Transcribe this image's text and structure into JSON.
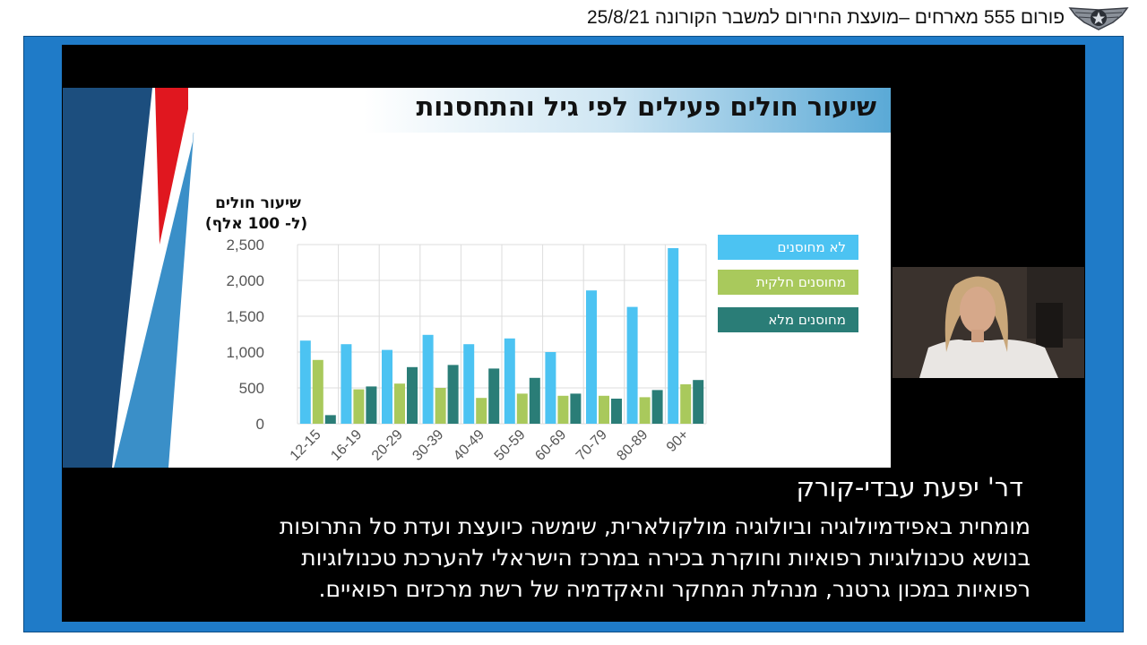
{
  "header": {
    "title": "פורום 555 מארחים –מועצת החירום למשבר הקורונה 25/8/21"
  },
  "slide": {
    "title": "שיעור חולים פעילים לפי גיל והתחסנות"
  },
  "chart_data": {
    "type": "bar",
    "ylabel_line1": "שיעור חולים",
    "ylabel_line2": "(ל- 100 אלף)",
    "categories": [
      "12-15",
      "16-19",
      "20-29",
      "30-39",
      "40-49",
      "50-59",
      "60-69",
      "70-79",
      "80-89",
      "90+"
    ],
    "ylim": [
      0,
      2500
    ],
    "yticks": [
      0,
      500,
      1000,
      1500,
      2000,
      2500
    ],
    "ytick_labels": [
      "0",
      "500",
      "1,000",
      "1,500",
      "2,000",
      "2,500"
    ],
    "grid": true,
    "legend_position": "right",
    "series": [
      {
        "name": "לא מחוסנים",
        "color": "#4cc3f2",
        "values": [
          1160,
          1110,
          1030,
          1240,
          1110,
          1190,
          1000,
          1860,
          1630,
          2450
        ]
      },
      {
        "name": "מחוסנים חלקית",
        "color": "#a9c95c",
        "values": [
          890,
          480,
          560,
          500,
          360,
          420,
          390,
          390,
          370,
          550
        ]
      },
      {
        "name": "מחוסנים מלא",
        "color": "#2a7d77",
        "values": [
          120,
          520,
          790,
          820,
          770,
          640,
          420,
          350,
          470,
          610
        ]
      }
    ]
  },
  "caption": {
    "name": "דר' יפעת עבדי-קורק",
    "line1": "מומחית באפידמיולוגיה וביולוגיה מולקולארית, שימשה כיועצת ועדת סל התרופות",
    "line2": "בנושא טכנולוגיות רפואיות וחוקרת בכירה במרכז הישראלי להערכת טכנולוגיות",
    "line3": "רפואיות במכון גרטנר, מנהלת המחקר והאקדמיה של רשת מרכזים רפואיים."
  },
  "colors": {
    "frame_blue": "#1f7bc8",
    "slide_navy": "#1c4e7e",
    "slide_red": "#e0171f",
    "slide_blue": "#3a8fc8"
  }
}
